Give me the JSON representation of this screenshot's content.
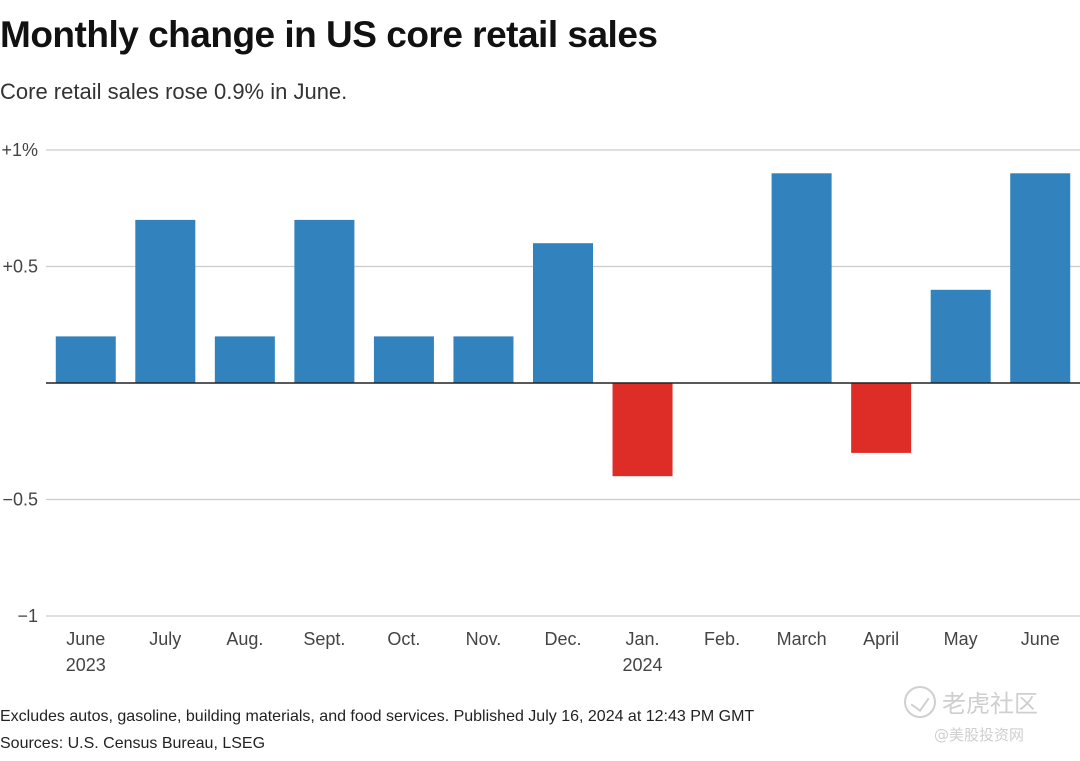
{
  "chart_data": {
    "type": "bar",
    "title": "Monthly change in US core retail sales",
    "subtitle": "Core retail sales rose 0.9% in June.",
    "categories": [
      "June 2023",
      "July",
      "Aug.",
      "Sept.",
      "Oct.",
      "Nov.",
      "Dec.",
      "Jan. 2024",
      "Feb.",
      "March",
      "April",
      "May",
      "June"
    ],
    "category_labels": [
      [
        "June",
        "2023"
      ],
      [
        "July"
      ],
      [
        "Aug."
      ],
      [
        "Sept."
      ],
      [
        "Oct."
      ],
      [
        "Nov."
      ],
      [
        "Dec."
      ],
      [
        "Jan.",
        "2024"
      ],
      [
        "Feb."
      ],
      [
        "March"
      ],
      [
        "April"
      ],
      [
        "May"
      ],
      [
        "June"
      ]
    ],
    "values": [
      0.2,
      0.7,
      0.2,
      0.7,
      0.2,
      0.2,
      0.6,
      -0.4,
      0.0,
      0.9,
      -0.3,
      0.4,
      0.9
    ],
    "ylim": [
      -1,
      1
    ],
    "yticks": [
      {
        "value": 1,
        "label": "+1%"
      },
      {
        "value": 0.5,
        "label": "+0.5"
      },
      {
        "value": -0.5,
        "label": "−0.5"
      },
      {
        "value": -1,
        "label": "−1"
      }
    ],
    "xlabel": "",
    "ylabel": "",
    "grid": true,
    "colors": {
      "positive": "#3182bd",
      "negative": "#de2d26",
      "grid": "#cccccc",
      "baseline": "#222222"
    }
  },
  "footer": {
    "note": "Excludes autos, gasoline, building materials, and food services. Published July 16, 2024 at 12:43 PM GMT",
    "sources": "Sources: U.S. Census Bureau, LSEG"
  },
  "watermark": {
    "logo_text": "老虎社区",
    "sub_text": "@美股投资网",
    "icon": "check-circle-icon"
  }
}
